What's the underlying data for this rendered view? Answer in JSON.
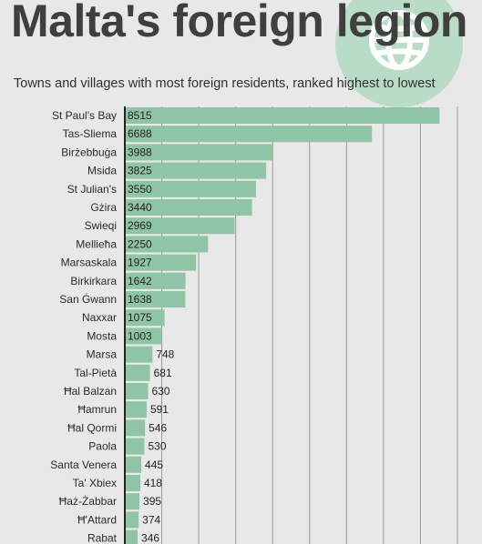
{
  "header": {
    "title": "Malta's foreign legion",
    "subtitle": "Towns and villages with most foreign residents, ranked highest to lowest"
  },
  "colors": {
    "bar": "#8fc4a6",
    "grid": "#9a9a9a",
    "axis": "#222222",
    "logo": "#b9dcc6"
  },
  "logo_icon": "globe-icon",
  "chart_data": {
    "type": "bar",
    "orientation": "horizontal",
    "title": "",
    "xlabel": "",
    "ylabel": "",
    "grid": true,
    "categories": [
      "St Paul's Bay",
      "Tas-Sliema",
      "Birżebbuġa",
      "Msida",
      "St Julian's",
      "Gżira",
      "Swieqi",
      "Mellieħa",
      "Marsaskala",
      "Birkirkara",
      "San Ġwann",
      "Naxxar",
      "Mosta",
      "Marsa",
      "Tal-Pietà",
      "Ħal Balzan",
      "Ħamrun",
      "Ħal Qormi",
      "Paola",
      "Santa Venera",
      "Ta' Xbiex",
      "Ħaż-Żabbar",
      "Ħ'Attard",
      "Rabat"
    ],
    "values": [
      8515,
      6688,
      3988,
      3825,
      3550,
      3440,
      2969,
      2250,
      1927,
      1642,
      1638,
      1075,
      1003,
      748,
      681,
      630,
      591,
      546,
      530,
      445,
      418,
      395,
      374,
      346
    ],
    "xlim": [
      0,
      9000
    ]
  }
}
